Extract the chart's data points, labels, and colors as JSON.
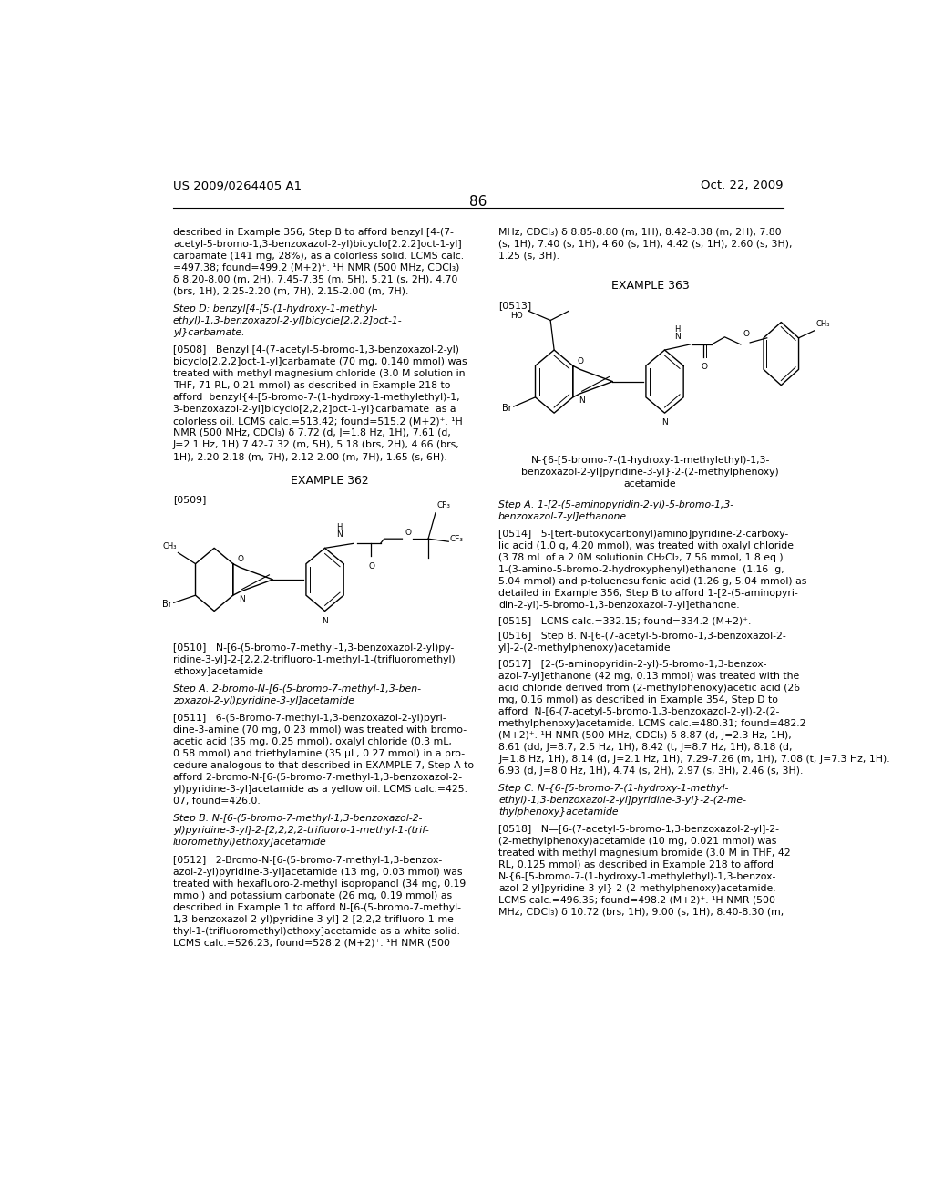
{
  "background_color": "#ffffff",
  "header_left": "US 2009/0264405 A1",
  "header_right": "Oct. 22, 2009",
  "page_number": "86",
  "lm": 0.078,
  "rc": 0.528,
  "fs": 7.8,
  "lh": 0.0128
}
